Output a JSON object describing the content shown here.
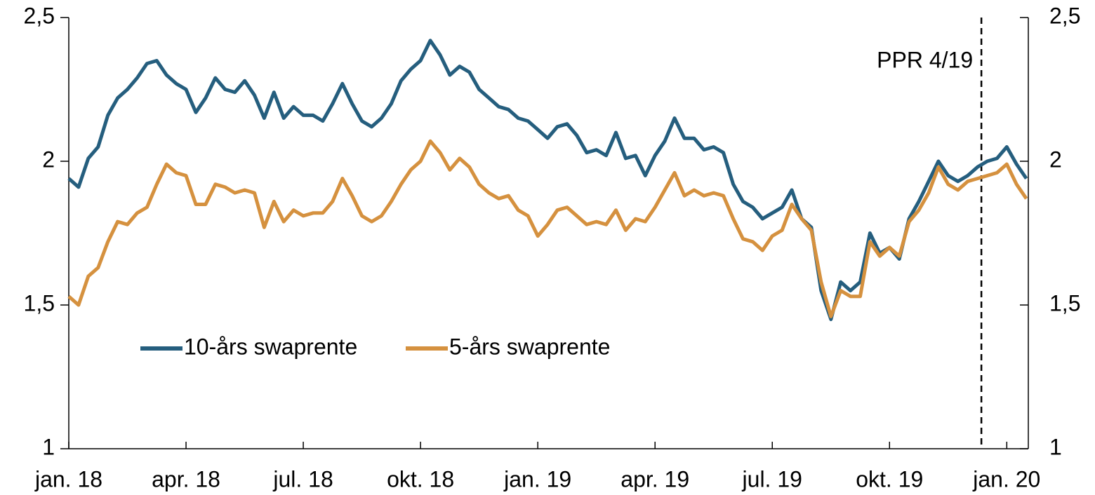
{
  "chart_data": {
    "type": "line",
    "categories": [
      "jan. 18",
      null,
      null,
      null,
      null,
      null,
      null,
      null,
      null,
      null,
      null,
      null,
      "apr. 18",
      null,
      null,
      null,
      null,
      null,
      null,
      null,
      null,
      null,
      null,
      null,
      "jul. 18",
      null,
      null,
      null,
      null,
      null,
      null,
      null,
      null,
      null,
      null,
      null,
      "okt. 18",
      null,
      null,
      null,
      null,
      null,
      null,
      null,
      null,
      null,
      null,
      null,
      "jan. 19",
      null,
      null,
      null,
      null,
      null,
      null,
      null,
      null,
      null,
      null,
      null,
      "apr. 19",
      null,
      null,
      null,
      null,
      null,
      null,
      null,
      null,
      null,
      null,
      null,
      "jul. 19",
      null,
      null,
      null,
      null,
      null,
      null,
      null,
      null,
      null,
      null,
      null,
      "okt. 19",
      null,
      null,
      null,
      null,
      null,
      null,
      null,
      null,
      null,
      null,
      null,
      "jan. 20",
      null,
      null
    ],
    "series": [
      {
        "name": "10-års swaprente",
        "color": "#255e7e",
        "values": [
          1.94,
          1.91,
          2.01,
          2.05,
          2.16,
          2.22,
          2.25,
          2.29,
          2.34,
          2.35,
          2.3,
          2.27,
          2.25,
          2.17,
          2.22,
          2.29,
          2.25,
          2.24,
          2.28,
          2.23,
          2.15,
          2.24,
          2.15,
          2.19,
          2.16,
          2.16,
          2.14,
          2.2,
          2.27,
          2.2,
          2.14,
          2.12,
          2.15,
          2.2,
          2.28,
          2.32,
          2.35,
          2.42,
          2.37,
          2.3,
          2.33,
          2.31,
          2.25,
          2.22,
          2.19,
          2.18,
          2.15,
          2.14,
          2.11,
          2.08,
          2.12,
          2.13,
          2.09,
          2.03,
          2.04,
          2.02,
          2.1,
          2.01,
          2.02,
          1.95,
          2.02,
          2.07,
          2.15,
          2.08,
          2.08,
          2.04,
          2.05,
          2.03,
          1.92,
          1.86,
          1.84,
          1.8,
          1.82,
          1.84,
          1.9,
          1.8,
          1.77,
          1.55,
          1.45,
          1.58,
          1.55,
          1.58,
          1.75,
          1.68,
          1.7,
          1.66,
          1.8,
          1.86,
          1.93,
          2.0,
          1.95,
          1.93,
          1.95,
          1.98,
          2.0,
          2.01,
          2.05,
          1.99,
          1.94
        ]
      },
      {
        "name": "5-års swaprente",
        "color": "#d5913f",
        "values": [
          1.53,
          1.5,
          1.6,
          1.63,
          1.72,
          1.79,
          1.78,
          1.82,
          1.84,
          1.92,
          1.99,
          1.96,
          1.95,
          1.85,
          1.85,
          1.92,
          1.91,
          1.89,
          1.9,
          1.89,
          1.77,
          1.86,
          1.79,
          1.83,
          1.81,
          1.82,
          1.82,
          1.86,
          1.94,
          1.88,
          1.81,
          1.79,
          1.81,
          1.86,
          1.92,
          1.97,
          2.0,
          2.07,
          2.03,
          1.97,
          2.01,
          1.98,
          1.92,
          1.89,
          1.87,
          1.88,
          1.83,
          1.81,
          1.74,
          1.78,
          1.83,
          1.84,
          1.81,
          1.78,
          1.79,
          1.78,
          1.83,
          1.76,
          1.8,
          1.79,
          1.84,
          1.9,
          1.96,
          1.88,
          1.9,
          1.88,
          1.89,
          1.88,
          1.8,
          1.73,
          1.72,
          1.69,
          1.74,
          1.76,
          1.85,
          1.8,
          1.76,
          1.58,
          1.46,
          1.55,
          1.53,
          1.53,
          1.72,
          1.67,
          1.7,
          1.67,
          1.79,
          1.83,
          1.89,
          1.98,
          1.92,
          1.9,
          1.93,
          1.94,
          1.95,
          1.96,
          1.99,
          1.92,
          1.87
        ]
      }
    ],
    "ylim": [
      1,
      2.5
    ],
    "yticks": [
      1,
      {
        "value": 1.5,
        "label": "1,5"
      },
      2,
      {
        "value": 2.5,
        "label": "2,5"
      }
    ],
    "y2lim": [
      1,
      2.5
    ],
    "y2ticks": [
      1,
      {
        "value": 1.5,
        "label": "1,5"
      },
      2,
      {
        "value": 2.5,
        "label": "2,5"
      }
    ],
    "legend": "lower left",
    "grid": false,
    "annotations": [
      {
        "text": "PPR 4/19",
        "x": 93.4
      }
    ]
  }
}
